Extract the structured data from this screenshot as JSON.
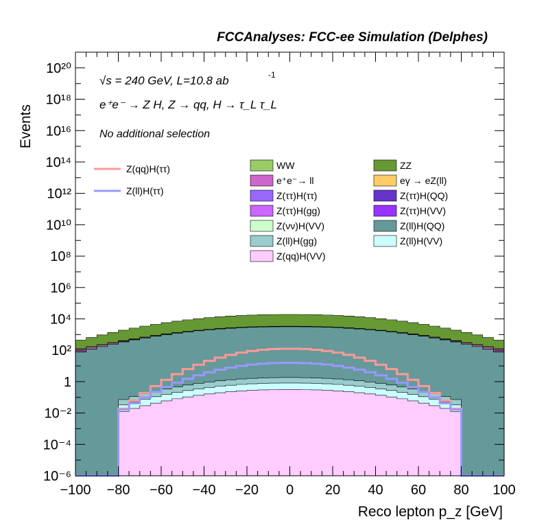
{
  "header": {
    "title": "FCCAnalyses: FCC-ee Simulation (Delphes)",
    "energy_line": "√s = 240 GeV, L=10.8 ab",
    "lumi_exponent": "-1",
    "process_line": "e⁺e⁻ → Z H, Z → qq, H → τ_L τ_L",
    "selection": "No additional selection"
  },
  "chart_data": {
    "type": "area",
    "title": "FCCAnalyses: FCC-ee Simulation (Delphes)",
    "xlabel": "Reco lepton p_z [GeV]",
    "ylabel": "Events",
    "xlim": [
      -100,
      100
    ],
    "ylim_log10": [
      -6,
      21
    ],
    "yscale": "log",
    "x_ticks": [
      -100,
      -80,
      -60,
      -40,
      -20,
      0,
      20,
      40,
      60,
      80,
      100
    ],
    "y_tick_exponents": [
      -6,
      -4,
      -2,
      0,
      2,
      4,
      6,
      8,
      10,
      12,
      14,
      16,
      18,
      20
    ],
    "y_tick_labels": [
      "10⁻⁶",
      "10⁻⁴",
      "10⁻²",
      "1",
      "10²",
      "10⁴",
      "10⁶",
      "10⁸",
      "10¹⁰",
      "10¹²",
      "10¹⁴",
      "10¹⁶",
      "10¹⁸",
      "10²⁰"
    ],
    "bin_width": 5,
    "stacked_series_bottom_to_top": [
      {
        "name": "Z(qq)H(VV)",
        "color": "#ffccff",
        "shape": {
          "kind": "plateau",
          "range": [
            -80,
            80
          ],
          "peak_log10": -0.5,
          "edge_log10": -2.0
        }
      },
      {
        "name": "Z(ll)H(VV)",
        "color": "#ccffff",
        "shape": {
          "kind": "plateau",
          "range": [
            -80,
            80
          ],
          "peak_log10": -0.3,
          "edge_log10": -1.8
        }
      },
      {
        "name": "Z(ll)H(gg)",
        "color": "#99cccc",
        "shape": {
          "kind": "plateau",
          "range": [
            -80,
            80
          ],
          "peak_log10": 0.0,
          "edge_log10": -1.5
        }
      },
      {
        "name": "Z(ll)H(QQ)",
        "color": "#669999",
        "shape": {
          "kind": "plateau",
          "range": [
            -100,
            100
          ],
          "peak_log10": 3.5,
          "edge_log10": 1.8
        }
      },
      {
        "name": "Z(νν)H(VV)",
        "color": "#ccffcc",
        "shape": {
          "kind": "plateau",
          "range": [
            -80,
            80
          ],
          "peak_log10": 0.5,
          "edge_log10": -1.0
        }
      },
      {
        "name": "Z(ττ)H(VV)",
        "color": "#9933ff",
        "shape": {
          "kind": "plateau",
          "range": [
            -75,
            80
          ],
          "peak_log10": 0.9,
          "edge_log10": -1.5
        }
      },
      {
        "name": "Z(ττ)H(gg)",
        "color": "#cc66ff",
        "shape": {
          "kind": "plateau",
          "range": [
            -75,
            75
          ],
          "peak_log10": -0.5,
          "edge_log10": -2.5
        }
      },
      {
        "name": "Z(ττ)H(QQ)",
        "color": "#6633cc",
        "shape": {
          "kind": "plateau",
          "range": [
            -75,
            80
          ],
          "peak_log10": 1.2,
          "edge_log10": -1.0
        }
      },
      {
        "name": "Z(ττ)H(ττ)",
        "color": "#9966ff",
        "shape": {
          "kind": "plateau",
          "range": [
            -75,
            80
          ],
          "peak_log10": 1.5,
          "edge_log10": -0.8
        }
      },
      {
        "name": "eγ → eZ(ll)",
        "color": "#ffcc66",
        "shape": {
          "kind": "plateau",
          "range": [
            -100,
            100
          ],
          "peak_log10": 0.5,
          "edge_log10": 0.5
        }
      },
      {
        "name": "e⁺e⁻→ ll",
        "color": "#cc66cc",
        "shape": {
          "kind": "plateau",
          "range": [
            -100,
            100
          ],
          "peak_log10": 1.8,
          "edge_log10": 1.5
        }
      },
      {
        "name": "WW",
        "color": "#99cc66",
        "shape": {
          "kind": "plateau",
          "range": [
            -100,
            100
          ],
          "peak_log10": 2.0,
          "edge_log10": 1.0
        }
      },
      {
        "name": "ZZ",
        "color": "#669933",
        "shape": {
          "kind": "plateau",
          "range": [
            -100,
            100
          ],
          "peak_log10": 4.2,
          "edge_log10": 2.4
        }
      }
    ],
    "signal_lines": [
      {
        "name": "Z(qq)H(ττ)",
        "color": "#ff9999",
        "shape": {
          "range": [
            -80,
            80
          ],
          "peak_log10": 2.1,
          "edge_log10": -2.0
        }
      },
      {
        "name": "Z(ll)H(ττ)",
        "color": "#9999ff",
        "shape": {
          "range": [
            -80,
            80
          ],
          "peak_log10": 1.2,
          "edge_log10": -2.0
        }
      }
    ],
    "legend_placement": "inside-top"
  },
  "legend": {
    "signals": [
      "Z(qq)H(ττ)",
      "Z(ll)H(ττ)"
    ],
    "backgrounds": [
      "WW",
      "ZZ",
      "e⁺e⁻→ ll",
      "eγ → eZ(ll)",
      "Z(ττ)H(ττ)",
      "Z(ττ)H(QQ)",
      "Z(ττ)H(gg)",
      "Z(ττ)H(VV)",
      "Z(νν)H(VV)",
      "Z(ll)H(QQ)",
      "Z(ll)H(gg)",
      "Z(ll)H(VV)",
      "Z(qq)H(VV)"
    ]
  }
}
